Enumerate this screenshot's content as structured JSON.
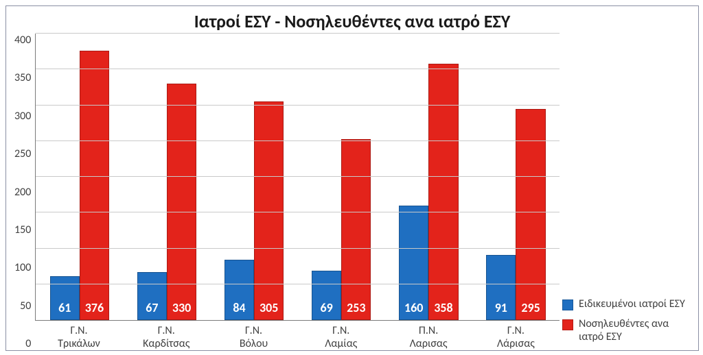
{
  "chart": {
    "type": "bar",
    "title": "Ιατροί ΕΣΥ - Νοσηλευθέντες ανα ιατρό ΕΣΥ",
    "title_fontsize": 26,
    "title_color": "#1a1a1a",
    "background_color": "#ffffff",
    "panel_border_color": "#8a8fa3",
    "grid_color": "#c9c9c9",
    "axis_color": "#7a7a7a",
    "label_color": "#404040",
    "label_fontsize": 16,
    "value_label_fontsize": 18,
    "bar_value_color": "#ffffff",
    "ylim": [
      0,
      400
    ],
    "ytick_step": 50,
    "yticks": [
      0,
      50,
      100,
      150,
      200,
      250,
      300,
      350,
      400
    ],
    "bar_width_pct": 34,
    "bar_gap_pct": 0,
    "categories": [
      "Γ.Ν. Τρικάλων",
      "Γ.Ν. Καρδίτσας",
      "Γ.Ν. Βόλου",
      "Γ.Ν. Λαμίας",
      "Π.Ν. Λαρισας",
      "Γ.Ν. Λάρισας"
    ],
    "series": [
      {
        "name": "Ειδικευμένοι ιατροί ΕΣΥ",
        "color": "#1f6fc1",
        "values": [
          61,
          67,
          84,
          69,
          160,
          91
        ]
      },
      {
        "name": "Νοσηλευθέντες ανα ιατρό ΕΣΥ",
        "color": "#e3231b",
        "values": [
          376,
          330,
          305,
          253,
          358,
          295
        ]
      }
    ]
  }
}
